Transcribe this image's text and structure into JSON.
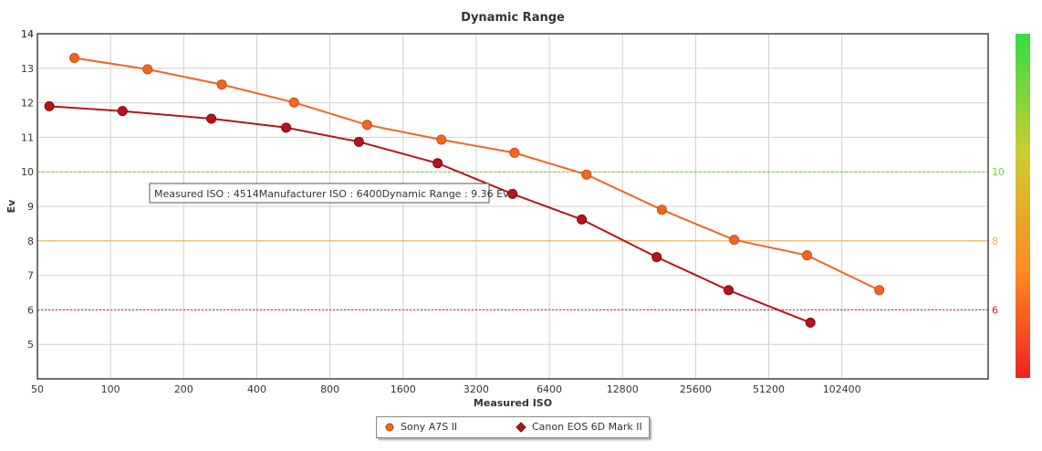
{
  "chart_data": {
    "type": "line",
    "title": "Dynamic Range",
    "xlabel": "Measured ISO",
    "ylabel": "Ev",
    "x_scale": "log2",
    "x_ticks": [
      "50",
      "100",
      "200",
      "400",
      "800",
      "1600",
      "3200",
      "6400",
      "12800",
      "25600",
      "51200",
      "102400"
    ],
    "x_tick_values": [
      50,
      100,
      200,
      400,
      800,
      1600,
      3200,
      6400,
      12800,
      25600,
      51200,
      102400
    ],
    "xlim": [
      50,
      409600
    ],
    "y_ticks": [
      "5",
      "6",
      "7",
      "8",
      "9",
      "10",
      "11",
      "12",
      "13",
      "14"
    ],
    "ylim": [
      4,
      14
    ],
    "grid": true,
    "thresholds": [
      {
        "value": 10,
        "label": "10",
        "color": "#66dd33",
        "style": "dashed"
      },
      {
        "value": 8,
        "label": "8",
        "color": "#f0b048",
        "style": "solid"
      },
      {
        "value": 6,
        "label": "6",
        "color": "#cc2222",
        "style": "dotted"
      }
    ],
    "series": [
      {
        "name": "Sony A7S II",
        "color": "#f26522",
        "marker": "circle",
        "x": [
          71,
          142,
          287,
          569,
          1138,
          2300,
          4600,
          9100,
          18600,
          36900,
          73600,
          146000
        ],
        "y": [
          13.3,
          12.97,
          12.53,
          12.01,
          11.36,
          10.93,
          10.55,
          9.92,
          8.9,
          8.03,
          7.58,
          6.57
        ]
      },
      {
        "name": "Canon EOS 6D Mark II",
        "color": "#b5141b",
        "marker": "diamond",
        "x": [
          56,
          112,
          260,
          528,
          1053,
          2220,
          4514,
          8700,
          17700,
          35000,
          76000
        ],
        "y": [
          11.9,
          11.76,
          11.54,
          11.28,
          10.87,
          10.25,
          9.36,
          8.62,
          7.53,
          6.57,
          5.63
        ]
      }
    ],
    "tooltip": {
      "text": "Measured ISO : 4514Manufacturer ISO : 6400Dynamic Range : 9.36 Ev"
    },
    "legend": {
      "position": "bottom"
    },
    "color_scale": {
      "orientation": "vertical",
      "colors": [
        "#33dd44",
        "#cccc33",
        "#ff8822",
        "#ee2222"
      ]
    }
  }
}
